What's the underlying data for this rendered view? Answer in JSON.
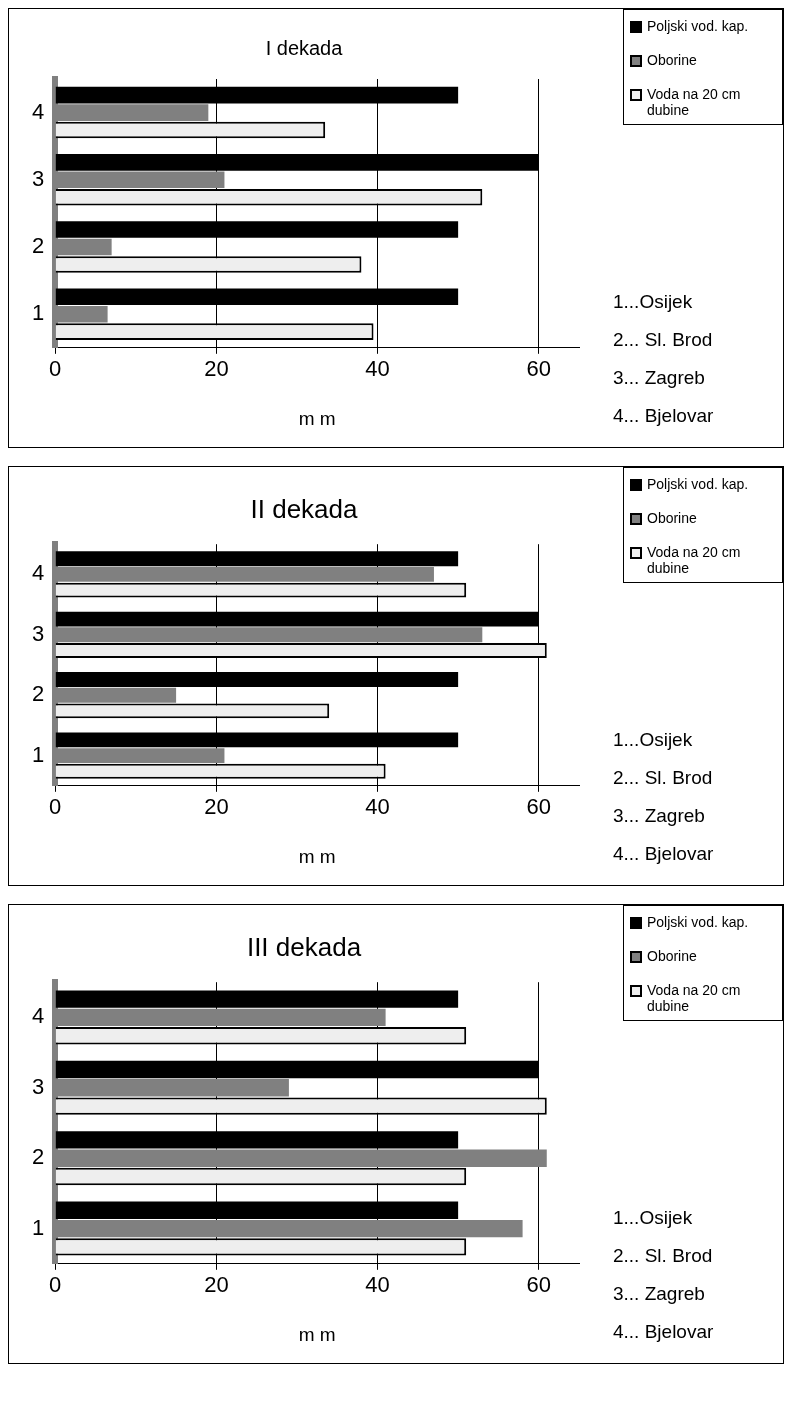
{
  "chart_data": [
    {
      "type": "bar",
      "orientation": "horizontal",
      "title": "I dekada",
      "xlabel": "m m",
      "categories": [
        "4",
        "3",
        "2",
        "1"
      ],
      "xlim": [
        0,
        65
      ],
      "xticks": [
        0,
        20,
        40,
        60
      ],
      "grid": "x",
      "legend": "top right",
      "series": [
        {
          "name": "Poljski vod. kap.",
          "color": "#000000",
          "values": [
            50,
            60,
            50,
            50
          ]
        },
        {
          "name": "Oborine",
          "color": "#808080",
          "values": [
            19,
            21,
            7,
            6.5
          ]
        },
        {
          "name": "Voda na 20 cm dubine",
          "color": "#eeeeee",
          "values": [
            33.5,
            53,
            38,
            39.5
          ]
        }
      ],
      "annotations": [
        "1...Osijek",
        "2... Sl. Brod",
        "3... Zagreb",
        "4... Bjelovar"
      ]
    },
    {
      "type": "bar",
      "orientation": "horizontal",
      "title": "II dekada",
      "xlabel": "m m",
      "categories": [
        "4",
        "3",
        "2",
        "1"
      ],
      "xlim": [
        0,
        65
      ],
      "xticks": [
        0,
        20,
        40,
        60
      ],
      "grid": "x",
      "legend": "top right",
      "series": [
        {
          "name": "Poljski vod. kap.",
          "color": "#000000",
          "values": [
            50,
            60,
            50,
            50
          ]
        },
        {
          "name": "Oborine",
          "color": "#808080",
          "values": [
            47,
            53,
            15,
            21
          ]
        },
        {
          "name": "Voda na 20 cm dubine",
          "color": "#eeeeee",
          "values": [
            51,
            61,
            34,
            41
          ]
        }
      ],
      "annotations": [
        "1...Osijek",
        "2... Sl. Brod",
        "3... Zagreb",
        "4... Bjelovar"
      ]
    },
    {
      "type": "bar",
      "orientation": "horizontal",
      "title": "III dekada",
      "xlabel": "m m",
      "categories": [
        "4",
        "3",
        "2",
        "1"
      ],
      "xlim": [
        0,
        65
      ],
      "xticks": [
        0,
        20,
        40,
        60
      ],
      "grid": "x",
      "legend": "top right",
      "series": [
        {
          "name": "Poljski vod. kap.",
          "color": "#000000",
          "values": [
            50,
            60,
            50,
            50
          ]
        },
        {
          "name": "Oborine",
          "color": "#808080",
          "values": [
            41,
            29,
            61,
            58
          ]
        },
        {
          "name": "Voda na 20 cm dubine",
          "color": "#eeeeee",
          "values": [
            51,
            61,
            51,
            51
          ]
        }
      ],
      "annotations": [
        "1...Osijek",
        "2... Sl. Brod",
        "3... Zagreb",
        "4... Bjelovar"
      ]
    }
  ]
}
